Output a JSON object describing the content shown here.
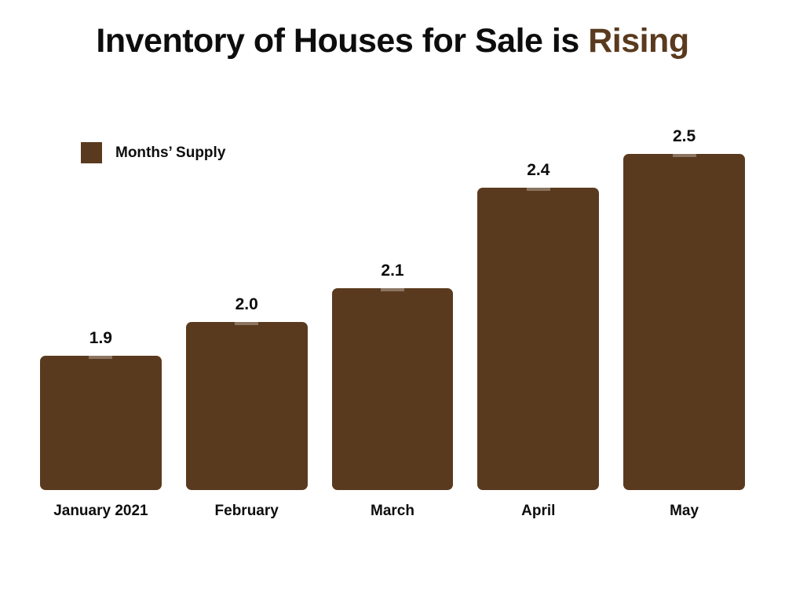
{
  "title": {
    "text_main": "Inventory of Houses for Sale is ",
    "text_accent": "Rising"
  },
  "legend": {
    "label": "Months’ Supply",
    "swatch_color": "#5a3a1e"
  },
  "chart_data": {
    "type": "bar",
    "title": "Inventory of Houses for Sale is Rising",
    "categories": [
      "January 2021",
      "February",
      "March",
      "April",
      "May"
    ],
    "series": [
      {
        "name": "Months’ Supply",
        "values": [
          1.9,
          2.0,
          2.1,
          2.4,
          2.5
        ],
        "value_labels": [
          "1.9",
          "2.0",
          "2.1",
          "2.4",
          "2.5"
        ]
      }
    ],
    "xlabel": "",
    "ylabel": "",
    "ylim": [
      1.5,
      2.5
    ],
    "grid": false,
    "axes_shown": false,
    "legend_position": "top-left",
    "bar_color": "#5a3a1e",
    "value_label_color": "#0d0d0d",
    "category_label_color": "#0d0d0d"
  },
  "colors": {
    "background": "#ffffff",
    "accent_brown": "#5a3a1e",
    "text_black": "#0d0d0d"
  }
}
